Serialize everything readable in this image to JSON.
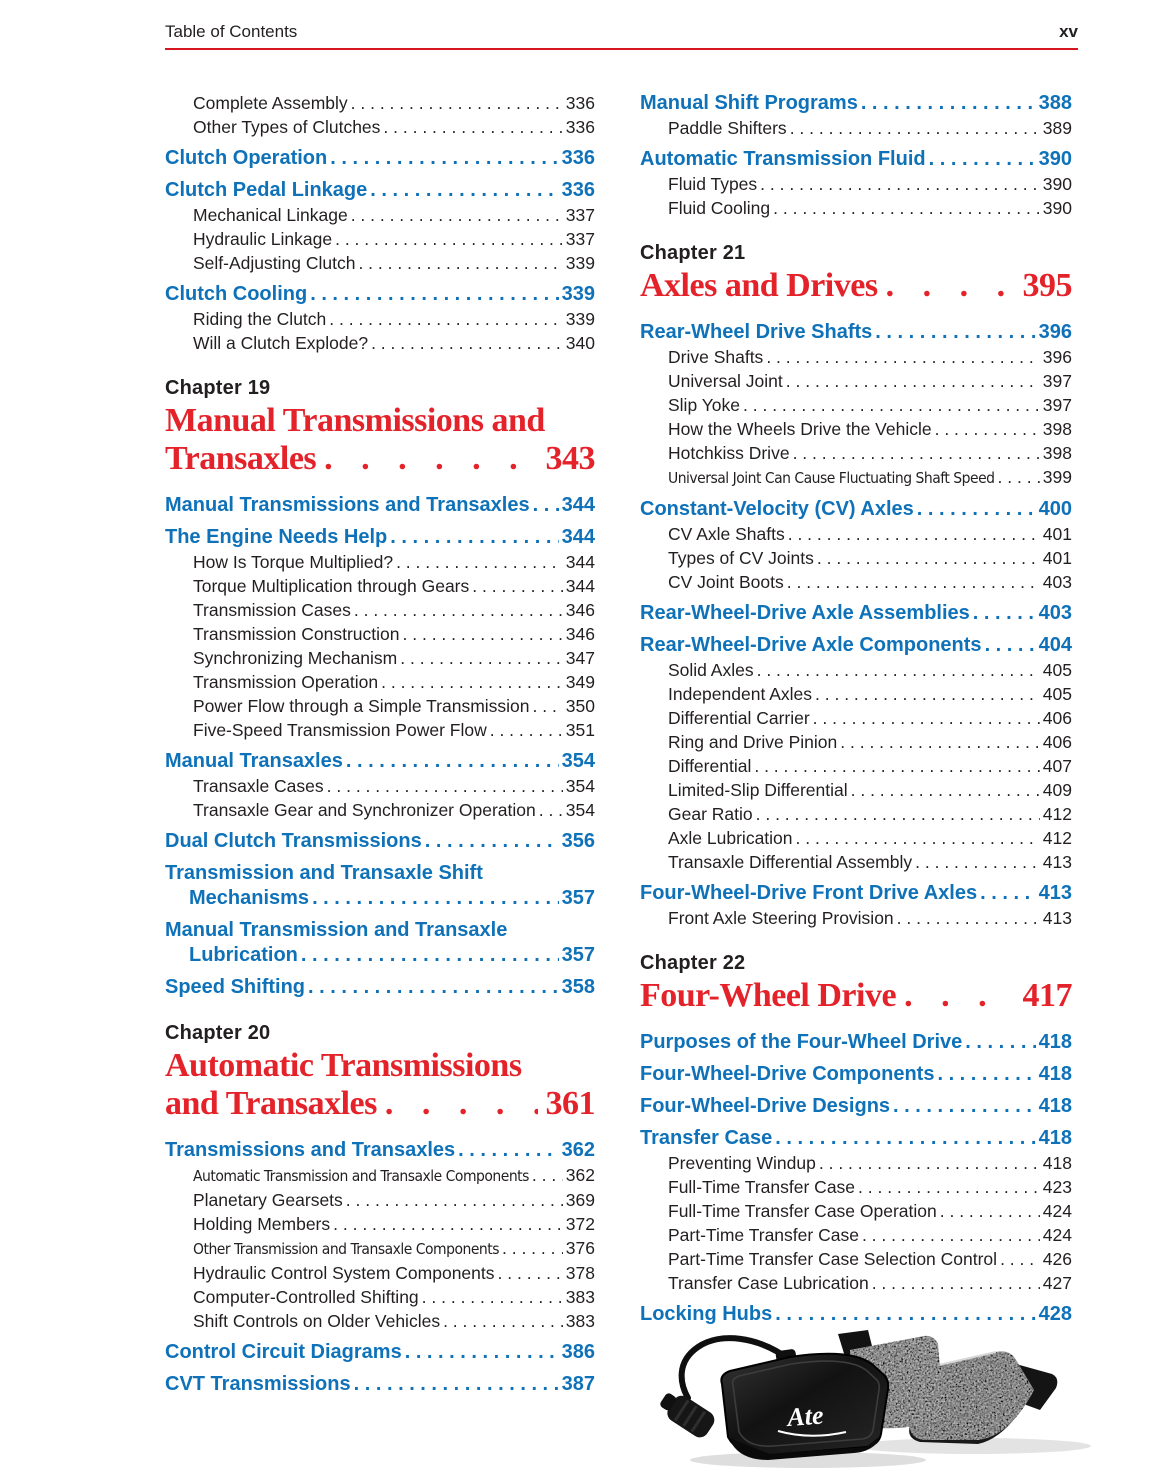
{
  "page": {
    "header_left": "Table of Contents",
    "header_right": "xv"
  },
  "colors": {
    "heading_blue": "#0f72b9",
    "chapter_red": "#e4222a",
    "rule_red": "#d8161f",
    "body_text": "#231f20"
  },
  "photo": {
    "description": "disc-brake-pad-set-photo",
    "brand": "Ate"
  },
  "columns": {
    "left": [
      {
        "type": "sub",
        "label": "Complete Assembly",
        "page": "336"
      },
      {
        "type": "sub",
        "label": "Other Types of Clutches",
        "page": "336"
      },
      {
        "type": "head",
        "label": "Clutch Operation",
        "page": "336"
      },
      {
        "type": "head",
        "label": "Clutch Pedal Linkage",
        "page": "336"
      },
      {
        "type": "sub",
        "label": "Mechanical Linkage",
        "page": "337"
      },
      {
        "type": "sub",
        "label": "Hydraulic Linkage",
        "page": "337"
      },
      {
        "type": "sub",
        "label": "Self-Adjusting Clutch",
        "page": "339"
      },
      {
        "type": "head",
        "label": "Clutch Cooling",
        "page": "339"
      },
      {
        "type": "sub",
        "label": "Riding the Clutch",
        "page": "339"
      },
      {
        "type": "sub",
        "label": "Will a Clutch Explode?",
        "page": "340"
      },
      {
        "type": "chapter",
        "kicker": "Chapter 19",
        "title1": "Manual Transmissions and",
        "title2": "Transaxles",
        "page": "343"
      },
      {
        "type": "head",
        "label": "Manual Transmissions and Transaxles",
        "page": "344"
      },
      {
        "type": "head",
        "label": "The Engine Needs Help",
        "page": "344"
      },
      {
        "type": "sub",
        "label": "How Is Torque Multiplied?",
        "page": "344"
      },
      {
        "type": "sub",
        "label": "Torque Multiplication through Gears",
        "page": "344"
      },
      {
        "type": "sub",
        "label": "Transmission Cases",
        "page": "346"
      },
      {
        "type": "sub",
        "label": "Transmission Construction",
        "page": "346"
      },
      {
        "type": "sub",
        "label": "Synchronizing Mechanism",
        "page": "347"
      },
      {
        "type": "sub",
        "label": "Transmission Operation",
        "page": "349"
      },
      {
        "type": "sub",
        "label": "Power Flow through a Simple Transmission",
        "page": "350"
      },
      {
        "type": "sub",
        "label": "Five-Speed Transmission Power Flow",
        "page": "351"
      },
      {
        "type": "head",
        "label": "Manual Transaxles",
        "page": "354"
      },
      {
        "type": "sub",
        "label": "Transaxle Cases",
        "page": "354"
      },
      {
        "type": "sub",
        "label": "Transaxle Gear and Synchronizer Operation",
        "page": "354"
      },
      {
        "type": "head",
        "label": "Dual Clutch Transmissions",
        "page": "356"
      },
      {
        "type": "head2",
        "label1": "Transmission and Transaxle Shift",
        "label2": "Mechanisms",
        "page": "357"
      },
      {
        "type": "head2",
        "label1": "Manual Transmission and Transaxle",
        "label2": "Lubrication",
        "page": "357"
      },
      {
        "type": "head",
        "label": "Speed Shifting",
        "page": "358"
      },
      {
        "type": "chapter",
        "kicker": "Chapter 20",
        "title1": "Automatic Transmissions",
        "title2": "and Transaxles",
        "page": "361"
      },
      {
        "type": "head",
        "label": "Transmissions and Transaxles",
        "page": "362"
      },
      {
        "type": "sub",
        "narrow": true,
        "label": "Automatic Transmission and Transaxle Components",
        "page": "362"
      },
      {
        "type": "sub",
        "label": "Planetary Gearsets",
        "page": "369"
      },
      {
        "type": "sub",
        "label": "Holding Members",
        "page": "372"
      },
      {
        "type": "sub",
        "narrow": true,
        "label": "Other Transmission and Transaxle Components",
        "page": "376"
      },
      {
        "type": "sub",
        "label": "Hydraulic Control System Components",
        "page": "378"
      },
      {
        "type": "sub",
        "label": "Computer-Controlled Shifting",
        "page": "383"
      },
      {
        "type": "sub",
        "label": "Shift Controls on Older Vehicles",
        "page": "383"
      },
      {
        "type": "head",
        "label": "Control Circuit Diagrams",
        "page": "386"
      },
      {
        "type": "head",
        "label": "CVT Transmissions",
        "page": "387"
      }
    ],
    "right": [
      {
        "type": "head",
        "label": "Manual Shift Programs",
        "page": "388"
      },
      {
        "type": "sub",
        "label": "Paddle Shifters",
        "page": "389"
      },
      {
        "type": "head",
        "label": "Automatic Transmission Fluid",
        "page": "390"
      },
      {
        "type": "sub",
        "label": "Fluid Types",
        "page": "390"
      },
      {
        "type": "sub",
        "label": "Fluid Cooling",
        "page": "390"
      },
      {
        "type": "chapter",
        "kicker": "Chapter 21",
        "title1": "Axles and Drives",
        "title2": null,
        "page": "395"
      },
      {
        "type": "head",
        "label": "Rear-Wheel Drive Shafts",
        "page": "396"
      },
      {
        "type": "sub",
        "label": "Drive Shafts",
        "page": "396"
      },
      {
        "type": "sub",
        "label": "Universal Joint",
        "page": "397"
      },
      {
        "type": "sub",
        "label": "Slip Yoke",
        "page": "397"
      },
      {
        "type": "sub",
        "label": "How the Wheels Drive the Vehicle",
        "page": "398"
      },
      {
        "type": "sub",
        "label": "Hotchkiss Drive",
        "page": "398"
      },
      {
        "type": "sub",
        "narrow": true,
        "label": "Universal Joint Can Cause Fluctuating Shaft Speed",
        "page": "399"
      },
      {
        "type": "head",
        "label": "Constant-Velocity (CV) Axles",
        "page": "400"
      },
      {
        "type": "sub",
        "label": "CV Axle Shafts",
        "page": "401"
      },
      {
        "type": "sub",
        "label": "Types of CV Joints",
        "page": "401"
      },
      {
        "type": "sub",
        "label": "CV Joint Boots",
        "page": "403"
      },
      {
        "type": "head",
        "label": "Rear-Wheel-Drive Axle Assemblies",
        "page": "403"
      },
      {
        "type": "head",
        "label": "Rear-Wheel-Drive Axle Components",
        "page": "404"
      },
      {
        "type": "sub",
        "label": "Solid Axles",
        "page": "405"
      },
      {
        "type": "sub",
        "label": "Independent Axles",
        "page": "405"
      },
      {
        "type": "sub",
        "label": "Differential Carrier",
        "page": "406"
      },
      {
        "type": "sub",
        "label": "Ring and Drive Pinion",
        "page": "406"
      },
      {
        "type": "sub",
        "label": "Differential",
        "page": "407"
      },
      {
        "type": "sub",
        "label": "Limited-Slip Differential",
        "page": "409"
      },
      {
        "type": "sub",
        "label": "Gear Ratio",
        "page": "412"
      },
      {
        "type": "sub",
        "label": "Axle Lubrication",
        "page": "412"
      },
      {
        "type": "sub",
        "label": "Transaxle Differential Assembly",
        "page": "413"
      },
      {
        "type": "head",
        "label": "Four-Wheel-Drive Front Drive Axles",
        "page": "413"
      },
      {
        "type": "sub",
        "label": "Front Axle Steering Provision",
        "page": "413"
      },
      {
        "type": "chapter",
        "kicker": "Chapter 22",
        "title1": "Four-Wheel Drive",
        "title2": null,
        "page": "417"
      },
      {
        "type": "head",
        "label": "Purposes of the Four-Wheel Drive",
        "page": "418"
      },
      {
        "type": "head",
        "label": "Four-Wheel-Drive Components",
        "page": "418"
      },
      {
        "type": "head",
        "label": "Four-Wheel-Drive Designs",
        "page": "418"
      },
      {
        "type": "head",
        "label": "Transfer Case",
        "page": "418"
      },
      {
        "type": "sub",
        "label": "Preventing Windup",
        "page": "418"
      },
      {
        "type": "sub",
        "label": "Full-Time Transfer Case",
        "page": "423"
      },
      {
        "type": "sub",
        "label": "Full-Time Transfer Case Operation",
        "page": "424"
      },
      {
        "type": "sub",
        "label": "Part-Time Transfer Case",
        "page": "424"
      },
      {
        "type": "sub",
        "label": "Part-Time Transfer Case Selection Control",
        "page": "426"
      },
      {
        "type": "sub",
        "label": "Transfer Case Lubrication",
        "page": "427"
      },
      {
        "type": "head",
        "label": "Locking Hubs",
        "page": "428"
      }
    ]
  }
}
